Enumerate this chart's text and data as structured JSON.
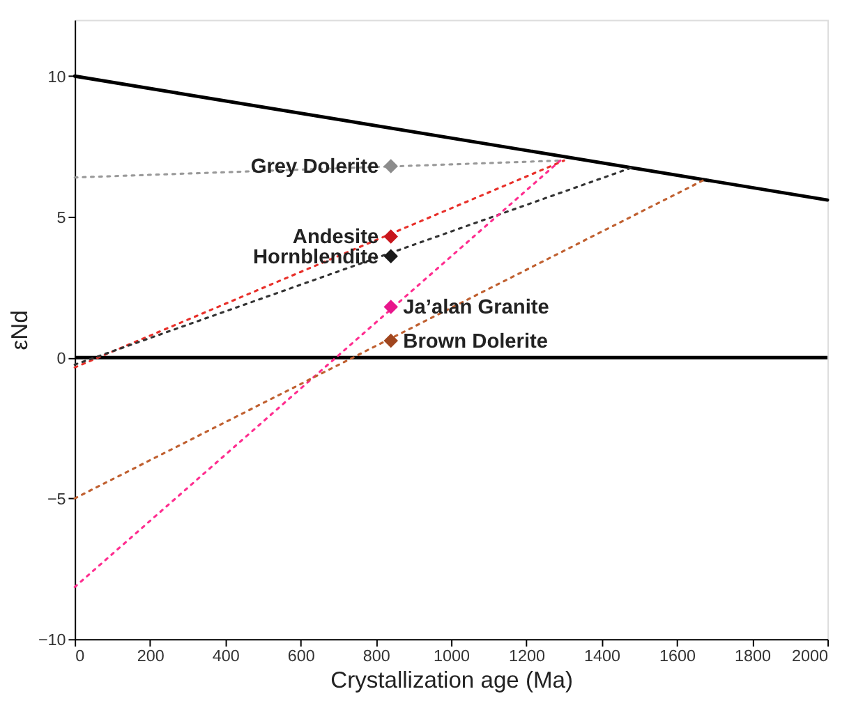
{
  "chart_data": {
    "type": "scatter",
    "xlabel": "Crystallization age (Ma)",
    "ylabel": "εNd",
    "xlim": [
      0,
      2000
    ],
    "xticks": [
      0,
      200,
      400,
      600,
      800,
      1000,
      1200,
      1400,
      1600,
      1800,
      2000
    ],
    "ylim": [
      -10,
      12
    ],
    "yticks": [
      -10,
      -5,
      0,
      5,
      10
    ],
    "grid": false,
    "legend": false,
    "marker": "diamond",
    "ref_lines": [
      {
        "axis": "y",
        "value": 0,
        "color": "#000000",
        "line_style": "solid"
      }
    ],
    "series": [
      {
        "type": "line",
        "marker": "none",
        "color": "#000000",
        "line_style": "solid",
        "x": [
          0,
          2000
        ],
        "values": [
          10,
          5.6
        ]
      },
      {
        "type": "line",
        "marker": "none",
        "color": "#999999",
        "line_style": "dotted",
        "x": [
          0,
          1290
        ],
        "values": [
          6.4,
          7.0
        ]
      },
      {
        "type": "line",
        "marker": "none",
        "color": "#e8302a",
        "line_style": "dotted",
        "x": [
          0,
          1300
        ],
        "values": [
          -0.35,
          7.0
        ]
      },
      {
        "type": "line",
        "marker": "none",
        "color": "#333333",
        "line_style": "dotted",
        "x": [
          0,
          1480
        ],
        "values": [
          -0.25,
          6.75
        ]
      },
      {
        "type": "line",
        "marker": "none",
        "color": "#ff2d8f",
        "line_style": "dotted",
        "x": [
          0,
          1290
        ],
        "values": [
          -8.15,
          7.0
        ]
      },
      {
        "type": "line",
        "marker": "none",
        "color": "#c06030",
        "line_style": "dotted",
        "x": [
          0,
          1670
        ],
        "values": [
          -5.0,
          6.3
        ]
      },
      {
        "name": "Grey Dolerite",
        "color": "#8c8c8c",
        "x": [
          840
        ],
        "values": [
          6.8
        ]
      },
      {
        "name": "Andesite",
        "color": "#c8161d",
        "x": [
          840
        ],
        "values": [
          4.3
        ]
      },
      {
        "name": "Hornblendite",
        "color": "#1a1a1a",
        "x": [
          840
        ],
        "values": [
          3.6
        ]
      },
      {
        "name": "Ja’alan Granite",
        "color": "#e8168c",
        "x": [
          840
        ],
        "values": [
          1.8
        ]
      },
      {
        "name": "Brown Dolerite",
        "color": "#a0461e",
        "x": [
          840
        ],
        "values": [
          0.6
        ]
      }
    ]
  }
}
